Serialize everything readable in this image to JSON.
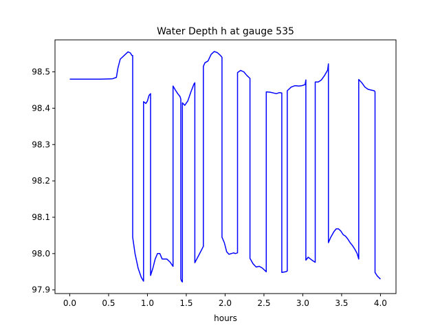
{
  "chart_data": {
    "type": "line",
    "title": "Water Depth h at gauge 535",
    "xlabel": "hours",
    "ylabel": "",
    "xlim": [
      -0.19,
      4.2
    ],
    "ylim": [
      97.89,
      98.588
    ],
    "xticks": [
      0.0,
      0.5,
      1.0,
      1.5,
      2.0,
      2.5,
      3.0,
      3.5,
      4.0
    ],
    "xtick_labels": [
      "0.0",
      "0.5",
      "1.0",
      "1.5",
      "2.0",
      "2.5",
      "3.0",
      "3.5",
      "4.0"
    ],
    "yticks": [
      97.9,
      98.0,
      98.1,
      98.2,
      98.3,
      98.4,
      98.5
    ],
    "ytick_labels": [
      "97.9",
      "98.0",
      "98.1",
      "98.2",
      "98.3",
      "98.4",
      "98.5"
    ],
    "grid": false,
    "legend": "none",
    "series": [
      {
        "name": "",
        "color": "#0000ff",
        "x": [
          0.0,
          0.2,
          0.4,
          0.55,
          0.6,
          0.62,
          0.65,
          0.7,
          0.75,
          0.78,
          0.8,
          0.81,
          0.81,
          0.84,
          0.88,
          0.92,
          0.95,
          0.95,
          0.98,
          1.0,
          1.02,
          1.04,
          1.04,
          1.07,
          1.1,
          1.13,
          1.16,
          1.19,
          1.22,
          1.25,
          1.29,
          1.33,
          1.33,
          1.36,
          1.39,
          1.42,
          1.43,
          1.43,
          1.44,
          1.45,
          1.45,
          1.48,
          1.52,
          1.56,
          1.6,
          1.61,
          1.61,
          1.66,
          1.72,
          1.72,
          1.74,
          1.78,
          1.82,
          1.86,
          1.9,
          1.94,
          1.96,
          1.96,
          1.99,
          2.02,
          2.05,
          2.08,
          2.11,
          2.13,
          2.16,
          2.16,
          2.2,
          2.24,
          2.28,
          2.32,
          2.32,
          2.36,
          2.4,
          2.44,
          2.48,
          2.53,
          2.53,
          2.58,
          2.62,
          2.66,
          2.7,
          2.73,
          2.73,
          2.78,
          2.8,
          2.8,
          2.85,
          2.9,
          2.95,
          2.99,
          3.03,
          3.04,
          3.04,
          3.07,
          3.1,
          3.13,
          3.16,
          3.16,
          3.2,
          3.24,
          3.28,
          3.32,
          3.33,
          3.33,
          3.36,
          3.4,
          3.43,
          3.46,
          3.49,
          3.52,
          3.55,
          3.58,
          3.61,
          3.64,
          3.67,
          3.7,
          3.72,
          3.72,
          3.76,
          3.8,
          3.84,
          3.88,
          3.92,
          3.93,
          3.93,
          3.96,
          4.0
        ],
        "y": [
          98.48,
          98.48,
          98.48,
          98.481,
          98.485,
          98.51,
          98.535,
          98.545,
          98.555,
          98.552,
          98.545,
          98.545,
          98.045,
          98.0,
          97.96,
          97.935,
          97.924,
          98.418,
          98.413,
          98.42,
          98.435,
          98.44,
          97.94,
          97.96,
          97.985,
          98.0,
          98.0,
          97.985,
          97.985,
          97.985,
          97.977,
          97.965,
          98.461,
          98.45,
          98.44,
          98.432,
          98.425,
          97.93,
          97.924,
          97.922,
          98.415,
          98.408,
          98.42,
          98.445,
          98.467,
          98.47,
          97.975,
          97.995,
          98.02,
          98.515,
          98.525,
          98.53,
          98.548,
          98.556,
          98.553,
          98.545,
          98.54,
          98.045,
          98.03,
          98.005,
          97.998,
          98.0,
          98.002,
          98.0,
          98.002,
          98.498,
          98.504,
          98.5,
          98.49,
          98.482,
          97.987,
          97.972,
          97.963,
          97.965,
          97.96,
          97.95,
          98.445,
          98.444,
          98.442,
          98.44,
          98.443,
          98.442,
          97.948,
          97.95,
          97.952,
          98.448,
          98.458,
          98.462,
          98.461,
          98.462,
          98.465,
          98.478,
          97.982,
          97.99,
          97.985,
          97.98,
          97.976,
          98.472,
          98.472,
          98.478,
          98.49,
          98.505,
          98.522,
          98.03,
          98.045,
          98.06,
          98.068,
          98.068,
          98.062,
          98.052,
          98.048,
          98.04,
          98.03,
          98.022,
          98.012,
          98.0,
          97.985,
          98.479,
          98.47,
          98.458,
          98.452,
          98.45,
          98.448,
          98.445,
          97.948,
          97.938,
          97.93
        ]
      }
    ]
  }
}
